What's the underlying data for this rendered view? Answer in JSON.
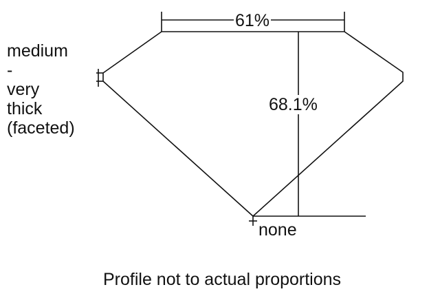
{
  "table_percent": "61%",
  "depth_percent": "68.1%",
  "culet": "none",
  "girdle_lines": [
    "medium",
    "-",
    "very",
    "thick",
    "(faceted)"
  ],
  "caption": "Profile not to actual proportions"
}
